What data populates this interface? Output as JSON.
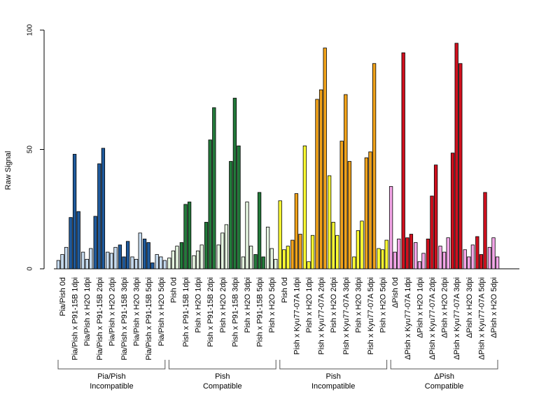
{
  "chart_data": {
    "type": "bar",
    "ylabel": "Raw Signal",
    "ylim": [
      0,
      100
    ],
    "yticks": [
      0,
      50,
      100
    ],
    "categories": [
      {
        "label": "Pia/Pish 0d",
        "color": "#c6dbef",
        "values": [
          3.5,
          6,
          9
        ]
      },
      {
        "label": "Pia/Pish x P91-15B 1dpi",
        "color": "#1f5a9c",
        "values": [
          21.5,
          48,
          24
        ]
      },
      {
        "label": "Pia/Pish x H2O 1dpi",
        "color": "#c6dbef",
        "values": [
          7,
          4,
          8.5
        ]
      },
      {
        "label": "Pia/Pish x P91-15B 2dpi",
        "color": "#1f5a9c",
        "values": [
          22,
          44,
          50.5
        ]
      },
      {
        "label": "Pia/Pish x H2O 2dpi",
        "color": "#c6dbef",
        "values": [
          7,
          6.5,
          9
        ]
      },
      {
        "label": "Pia/Pish x P91-15B 3dpi",
        "color": "#1f5a9c",
        "values": [
          10,
          5,
          11.5
        ]
      },
      {
        "label": "Pia/Pish x H2O 3dpi",
        "color": "#c6dbef",
        "values": [
          5,
          4,
          15
        ]
      },
      {
        "label": "Pia/Pish x P91-15B 5dpi",
        "color": "#1f5a9c",
        "values": [
          12.5,
          11,
          2.5
        ]
      },
      {
        "label": "Pia/Pish x H2O 5dpi",
        "color": "#c6dbef",
        "values": [
          6,
          5,
          3.5
        ]
      },
      {
        "label": "Pish 0d",
        "color": "#e5f5e0",
        "values": [
          4.5,
          7.5,
          9.5
        ]
      },
      {
        "label": "Pish x P91-15B 1dpi",
        "color": "#237a3b",
        "values": [
          11,
          27,
          28
        ]
      },
      {
        "label": "Pish x H2O 1dpi",
        "color": "#e5f5e0",
        "values": [
          5.5,
          7.5,
          10
        ]
      },
      {
        "label": "Pish x P91-15B 2dpi",
        "color": "#237a3b",
        "values": [
          19.5,
          54,
          67.5
        ]
      },
      {
        "label": "Pish x H2O 2dpi",
        "color": "#e5f5e0",
        "values": [
          10,
          15,
          18.5
        ]
      },
      {
        "label": "Pish x P91-15B 3dpi",
        "color": "#237a3b",
        "values": [
          45,
          71.5,
          51.5
        ]
      },
      {
        "label": "Pish x H2O 3dpi",
        "color": "#e5f5e0",
        "values": [
          5,
          28,
          9.5
        ]
      },
      {
        "label": "Pish x P91-15B 5dpi",
        "color": "#237a3b",
        "values": [
          6,
          32,
          5
        ]
      },
      {
        "label": "Pish x H2O 5dpi",
        "color": "#e5f5e0",
        "values": [
          17.5,
          8.5,
          4
        ]
      },
      {
        "label": "Pish 0d",
        "color": "#ffff33",
        "values": [
          28.5,
          8,
          9.5
        ]
      },
      {
        "label": "Pish x Kyu77-07A 1dpi",
        "color": "#f0a21a",
        "values": [
          12,
          31.5,
          14.5
        ]
      },
      {
        "label": "Pish x H2O 1dpi",
        "color": "#ffff33",
        "values": [
          51.5,
          3,
          14
        ]
      },
      {
        "label": "Pish x Kyu77-07A 2dpi",
        "color": "#f0a21a",
        "values": [
          71,
          75,
          92.5
        ]
      },
      {
        "label": "Pish x H2O 2dpi",
        "color": "#ffff33",
        "values": [
          39,
          19.5,
          14
        ]
      },
      {
        "label": "Pish x Kyu77-07A 3dpi",
        "color": "#f0a21a",
        "values": [
          53.5,
          73,
          45
        ]
      },
      {
        "label": "Pish x H2O 3dpi",
        "color": "#ffff33",
        "values": [
          5,
          16,
          20
        ]
      },
      {
        "label": "Pish x Kyu77-07A 5dpi",
        "color": "#f0a21a",
        "values": [
          46.5,
          49,
          86
        ]
      },
      {
        "label": "Pish x H2O 5dpi",
        "color": "#ffff33",
        "values": [
          8.5,
          8,
          12
        ]
      },
      {
        "label": "ΔPish 0d",
        "color": "#f4a6e8",
        "values": [
          34.5,
          7,
          12.5
        ]
      },
      {
        "label": "ΔPish x Kyu77-07A 1dpi",
        "color": "#d0101e",
        "values": [
          90.5,
          13,
          14.5
        ]
      },
      {
        "label": "ΔPish x H2O 1dpi",
        "color": "#f4a6e8",
        "values": [
          11,
          3,
          6.5
        ]
      },
      {
        "label": "ΔPish x Kyu77-07A 2dpi",
        "color": "#d0101e",
        "values": [
          12.5,
          30.5,
          43.5
        ]
      },
      {
        "label": "ΔPish x H2O 2dpi",
        "color": "#f4a6e8",
        "values": [
          9.5,
          7,
          13
        ]
      },
      {
        "label": "ΔPish x Kyu77-07A 3dpi",
        "color": "#d0101e",
        "values": [
          48.5,
          94.5,
          86
        ]
      },
      {
        "label": "ΔPish x H2O 3dpi",
        "color": "#f4a6e8",
        "values": [
          8,
          5,
          10
        ]
      },
      {
        "label": "ΔPish x Kyu77-07A 5dpi",
        "color": "#d0101e",
        "values": [
          13.5,
          6,
          32
        ]
      },
      {
        "label": "ΔPish x H2O 5dpi",
        "color": "#f4a6e8",
        "values": [
          9,
          13,
          5
        ]
      }
    ],
    "groups": [
      {
        "line1": "Pia/Pish",
        "line2": "Incompatible",
        "from": 0,
        "to": 8
      },
      {
        "line1": "Pish",
        "line2": "Compatible",
        "from": 9,
        "to": 17
      },
      {
        "line1": "Pish",
        "line2": "Incompatible",
        "from": 18,
        "to": 26
      },
      {
        "line1": "ΔPish",
        "line2": "Compatible",
        "from": 27,
        "to": 35
      }
    ]
  }
}
